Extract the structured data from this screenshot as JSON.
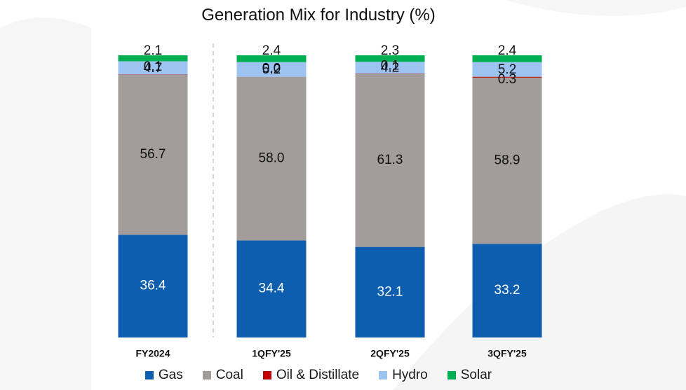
{
  "chart_data": {
    "type": "bar",
    "stacked": true,
    "title": "Generation Mix for Industry (%)",
    "categories": [
      "FY2024",
      "1QFY'25",
      "2QFY'25",
      "3QFY'25"
    ],
    "series": [
      {
        "name": "Gas",
        "color": "#0D5EAF",
        "values": [
          36.4,
          34.4,
          32.1,
          33.2
        ],
        "labels": [
          "36.4",
          "34.4",
          "32.1",
          "33.2"
        ]
      },
      {
        "name": "Coal",
        "color": "#A29D9A",
        "values": [
          56.7,
          58.0,
          61.3,
          58.9
        ],
        "labels": [
          "56.7",
          "58.0",
          "61.3",
          "58.9"
        ]
      },
      {
        "name": "Oil & Distillate",
        "color": "#C00000",
        "values": [
          0.1,
          0.0,
          0.1,
          0.3
        ],
        "labels": [
          "0.1",
          "0.0",
          "0.1",
          "0.3"
        ]
      },
      {
        "name": "Hydro",
        "color": "#9DC3F0",
        "values": [
          4.7,
          5.2,
          4.2,
          5.2
        ],
        "labels": [
          "4.7",
          "5.2",
          "4.2",
          "5.2"
        ]
      },
      {
        "name": "Solar",
        "color": "#00B050",
        "values": [
          2.1,
          2.4,
          2.3,
          2.4
        ],
        "labels": [
          "2.1",
          "2.4",
          "2.3",
          "2.4"
        ]
      }
    ],
    "ylim": [
      0,
      100
    ],
    "grid": false,
    "legend_position": "bottom"
  }
}
